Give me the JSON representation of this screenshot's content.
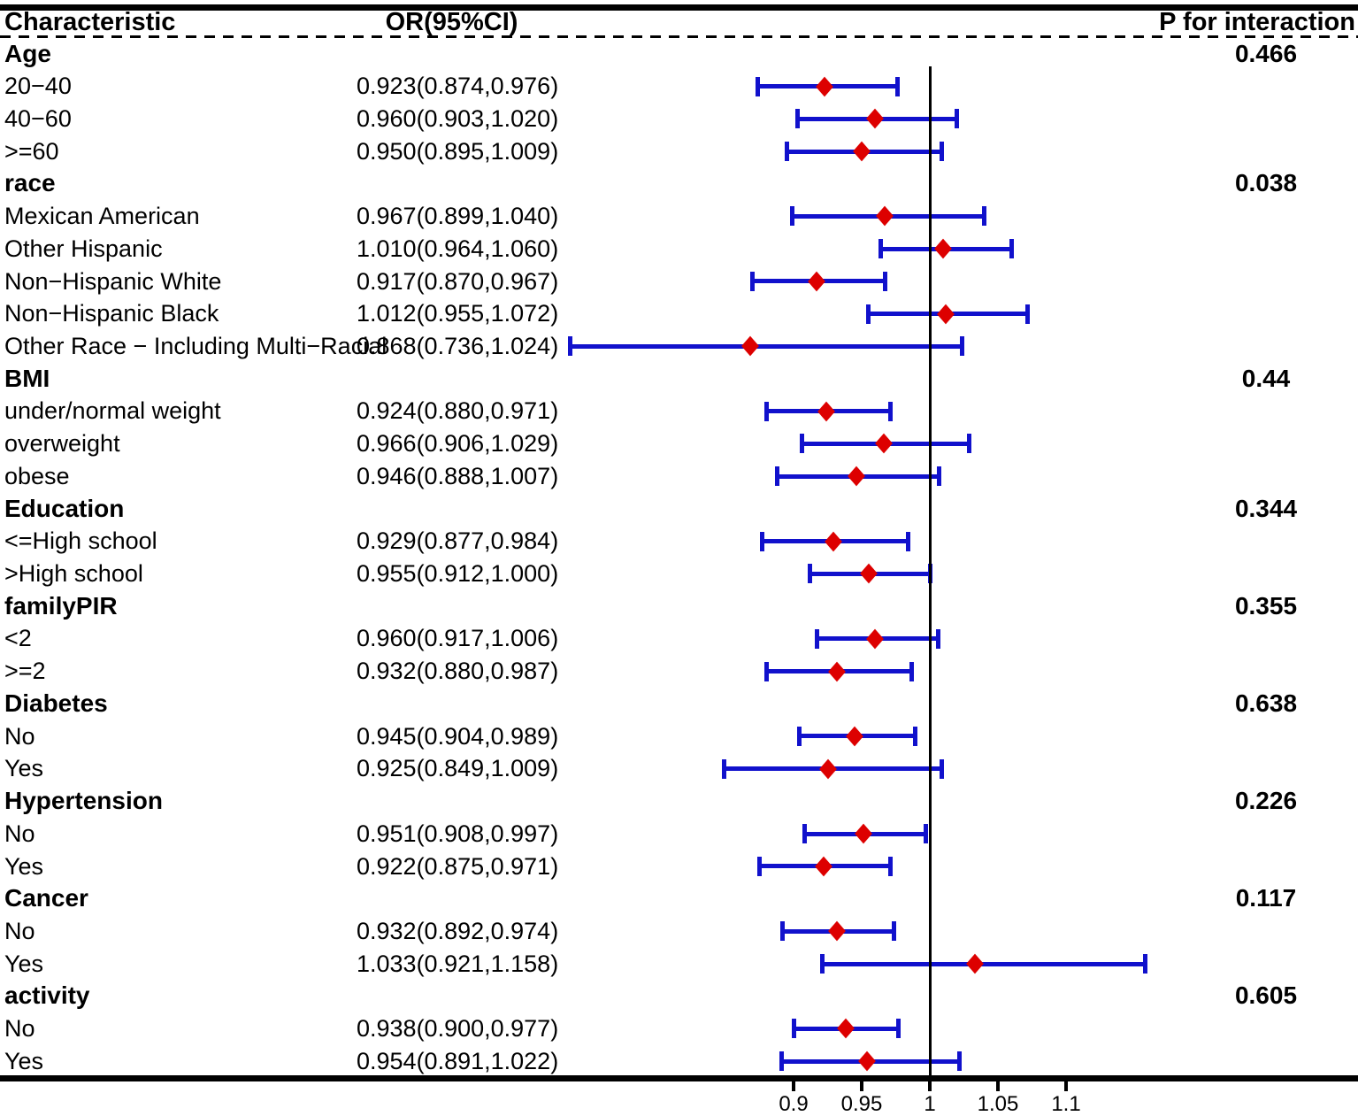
{
  "chart_data": {
    "type": "forest",
    "columns": {
      "characteristic": "Characteristic",
      "or_ci": "OR(95%CI)",
      "p_interaction": "P for interaction"
    },
    "rows": [
      {
        "label": "Age",
        "group": true,
        "p": "0.466"
      },
      {
        "label": "20−40",
        "or_text": "0.923(0.874,0.976)",
        "or": 0.923,
        "lo": 0.874,
        "hi": 0.976
      },
      {
        "label": "40−60",
        "or_text": "0.960(0.903,1.020)",
        "or": 0.96,
        "lo": 0.903,
        "hi": 1.02
      },
      {
        "label": ">=60",
        "or_text": "0.950(0.895,1.009)",
        "or": 0.95,
        "lo": 0.895,
        "hi": 1.009
      },
      {
        "label": "race",
        "group": true,
        "p": "0.038"
      },
      {
        "label": "Mexican American",
        "or_text": "0.967(0.899,1.040)",
        "or": 0.967,
        "lo": 0.899,
        "hi": 1.04
      },
      {
        "label": "Other Hispanic",
        "or_text": "1.010(0.964,1.060)",
        "or": 1.01,
        "lo": 0.964,
        "hi": 1.06
      },
      {
        "label": "Non−Hispanic White",
        "or_text": "0.917(0.870,0.967)",
        "or": 0.917,
        "lo": 0.87,
        "hi": 0.967
      },
      {
        "label": "Non−Hispanic Black",
        "or_text": "1.012(0.955,1.072)",
        "or": 1.012,
        "lo": 0.955,
        "hi": 1.072
      },
      {
        "label": "Other Race − Including Multi−Racial",
        "or_text": "0.868(0.736,1.024)",
        "or": 0.868,
        "lo": 0.736,
        "hi": 1.024
      },
      {
        "label": "BMI",
        "group": true,
        "p": "0.44"
      },
      {
        "label": "under/normal weight",
        "or_text": "0.924(0.880,0.971)",
        "or": 0.924,
        "lo": 0.88,
        "hi": 0.971
      },
      {
        "label": "overweight",
        "or_text": "0.966(0.906,1.029)",
        "or": 0.966,
        "lo": 0.906,
        "hi": 1.029
      },
      {
        "label": "obese",
        "or_text": "0.946(0.888,1.007)",
        "or": 0.946,
        "lo": 0.888,
        "hi": 1.007
      },
      {
        "label": "Education",
        "group": true,
        "p": "0.344"
      },
      {
        "label": "<=High school",
        "or_text": "0.929(0.877,0.984)",
        "or": 0.929,
        "lo": 0.877,
        "hi": 0.984
      },
      {
        "label": ">High school",
        "or_text": "0.955(0.912,1.000)",
        "or": 0.955,
        "lo": 0.912,
        "hi": 1.0
      },
      {
        "label": "familyPIR",
        "group": true,
        "p": "0.355"
      },
      {
        "label": "<2",
        "or_text": "0.960(0.917,1.006)",
        "or": 0.96,
        "lo": 0.917,
        "hi": 1.006
      },
      {
        "label": ">=2",
        "or_text": "0.932(0.880,0.987)",
        "or": 0.932,
        "lo": 0.88,
        "hi": 0.987
      },
      {
        "label": "Diabetes",
        "group": true,
        "p": "0.638"
      },
      {
        "label": "No",
        "or_text": "0.945(0.904,0.989)",
        "or": 0.945,
        "lo": 0.904,
        "hi": 0.989
      },
      {
        "label": "Yes",
        "or_text": "0.925(0.849,1.009)",
        "or": 0.925,
        "lo": 0.849,
        "hi": 1.009
      },
      {
        "label": "Hypertension",
        "group": true,
        "p": "0.226"
      },
      {
        "label": "No",
        "or_text": "0.951(0.908,0.997)",
        "or": 0.951,
        "lo": 0.908,
        "hi": 0.997
      },
      {
        "label": "Yes",
        "or_text": "0.922(0.875,0.971)",
        "or": 0.922,
        "lo": 0.875,
        "hi": 0.971
      },
      {
        "label": "Cancer",
        "group": true,
        "p": "0.117"
      },
      {
        "label": "No",
        "or_text": "0.932(0.892,0.974)",
        "or": 0.932,
        "lo": 0.892,
        "hi": 0.974
      },
      {
        "label": "Yes",
        "or_text": "1.033(0.921,1.158)",
        "or": 1.033,
        "lo": 0.921,
        "hi": 1.158
      },
      {
        "label": "activity",
        "group": true,
        "p": "0.605"
      },
      {
        "label": "No",
        "or_text": "0.938(0.900,0.977)",
        "or": 0.938,
        "lo": 0.9,
        "hi": 0.977
      },
      {
        "label": "Yes",
        "or_text": "0.954(0.891,1.022)",
        "or": 0.954,
        "lo": 0.891,
        "hi": 1.022
      }
    ],
    "x_axis": {
      "tick_values": [
        0.9,
        0.95,
        1,
        1.05,
        1.1
      ],
      "tick_labels": [
        "0.9",
        "0.95",
        "1",
        "1.05",
        "1.1"
      ],
      "reference_line": 1
    },
    "colors": {
      "ci_bar": "#1111CC",
      "marker": "#DD0000",
      "text": "#000000",
      "background": "#FFFFFF"
    },
    "legend": "none",
    "grid": "off"
  }
}
